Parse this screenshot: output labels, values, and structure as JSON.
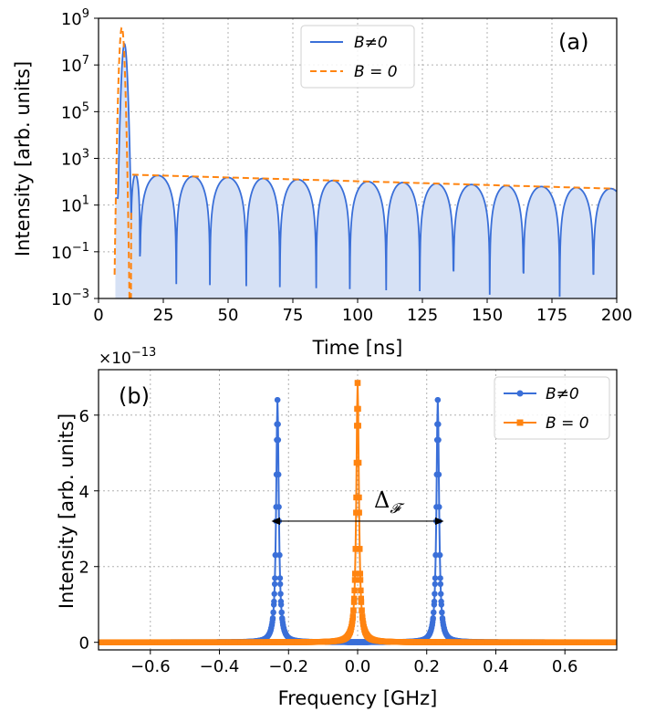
{
  "colors": {
    "blue": "#3a6fd8",
    "orange": "#ff8410",
    "fill": "#d6e1f5"
  },
  "panel_a_label": "(a)",
  "panel_b_label": "(b)",
  "annotation_delta": "Δ",
  "annotation_delta_sub": "𝓕",
  "chart_data": [
    {
      "type": "line",
      "panel": "(a)",
      "yscale": "log",
      "xlabel": "Time [ns]",
      "ylabel": "Intensity [arb. units]",
      "xlim": [
        0,
        200
      ],
      "ylim_exp": [
        -3,
        9
      ],
      "xticks": [
        "0",
        "25",
        "50",
        "75",
        "100",
        "125",
        "150",
        "175",
        "200"
      ],
      "yticks": [
        {
          "base": "10",
          "exp": "9"
        },
        {
          "base": "10",
          "exp": "7"
        },
        {
          "base": "10",
          "exp": "5"
        },
        {
          "base": "10",
          "exp": "3"
        },
        {
          "base": "10",
          "exp": "1"
        },
        {
          "base": "10",
          "exp": "−1"
        },
        {
          "base": "10",
          "exp": "−3"
        }
      ],
      "legend_position": "top-center",
      "legend": [
        {
          "name": "B≠0",
          "style": "solid"
        },
        {
          "name": "B = 0",
          "style": "dashed"
        }
      ],
      "series": [
        {
          "name": "B≠0",
          "peak_time": 10,
          "peak_value": 80000000,
          "envelope_start": 200,
          "envelope_end": 50,
          "lobe_period_ns": 13.5,
          "minima_ns": [
            16,
            30,
            43,
            57,
            70,
            84,
            97,
            111,
            124,
            137,
            151,
            164,
            178,
            191
          ]
        },
        {
          "name": "B = 0",
          "peak_time": 9,
          "peak_value": 400000000,
          "plateau_start_value": 200,
          "plateau_end_value": 50
        }
      ]
    },
    {
      "type": "line",
      "panel": "(b)",
      "xlabel": "Frequency [GHz]",
      "ylabel": "Intensity [arb. units]",
      "offset_text": "×10",
      "offset_exp": "−13",
      "xlim": [
        -0.75,
        0.75
      ],
      "ylim": [
        -0.2,
        7.2
      ],
      "xticks": [
        "−0.6",
        "−0.4",
        "−0.2",
        "0.0",
        "0.2",
        "0.4",
        "0.6"
      ],
      "yticks": [
        "0",
        "2",
        "4",
        "6"
      ],
      "legend_position": "top-right",
      "legend": [
        {
          "name": "B≠0",
          "marker": "circle"
        },
        {
          "name": "B = 0",
          "marker": "square"
        }
      ],
      "series": [
        {
          "name": "B≠0",
          "peaks": [
            {
              "x": -0.232,
              "y": 6.4
            },
            {
              "x": 0.232,
              "y": 6.4
            }
          ]
        },
        {
          "name": "B = 0",
          "peaks": [
            {
              "x": 0.0,
              "y": 6.85
            }
          ]
        }
      ],
      "annotation": {
        "label": "Δ𝓕",
        "x_from": -0.232,
        "x_to": 0.232,
        "y": 3.2
      }
    }
  ]
}
